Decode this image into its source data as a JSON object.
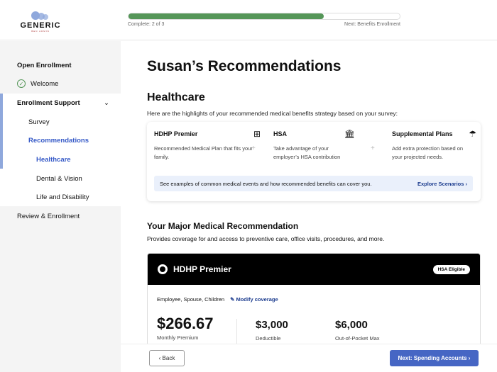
{
  "logo": {
    "name": "GENERIC",
    "tagline": "BEN ADMIN"
  },
  "progress": {
    "label": "Complete: 2 of 3",
    "fraction": 0.72,
    "next": "Next: Benefits Enrollment",
    "color": "#559658"
  },
  "sidebar": {
    "items": [
      {
        "label": "Open Enrollment"
      },
      {
        "label": "Welcome",
        "status": "complete"
      },
      {
        "label": "Enrollment Support",
        "expanded": true
      },
      {
        "label": "Survey"
      },
      {
        "label": "Recommendations",
        "active": true
      },
      {
        "label": "Healthcare",
        "active": true
      },
      {
        "label": "Dental & Vision"
      },
      {
        "label": "Life and Disability"
      },
      {
        "label": "Review & Enrollment"
      }
    ]
  },
  "main": {
    "title": "Susan’s Recommendations",
    "section": "Healthcare",
    "intro": "Here are the highlights of your recommended medical benefits strategy based on your survey:",
    "highlights": [
      {
        "title": "HDHP Premier",
        "desc": "Recommended Medical Plan that fits your family.",
        "icon": "medical-kit-icon"
      },
      {
        "title": "HSA",
        "desc": "Take advantage of your employer’s HSA contribution",
        "icon": "bank-icon"
      },
      {
        "title": "Supplemental Plans",
        "desc": "Add extra protection based on your projected needs.",
        "icon": "umbrella-icon"
      }
    ],
    "banner": {
      "text": "See examples of common medical events and how recommended benefits can cover you.",
      "link": "Explore Scenarios"
    },
    "major_title": "Your Major Medical Recommendation",
    "major_desc": "Provides coverage for and access to preventive care, office visits, procedures, and more.",
    "plan": {
      "name": "HDHP Premier",
      "badge": "HSA Eligible",
      "coverage": "Employee, Spouse, Children",
      "modify": "Modify coverage",
      "amounts": [
        {
          "value": "$266.67",
          "label": "Monthly Premium"
        },
        {
          "value": "$3,000",
          "label": "Deductible"
        },
        {
          "value": "$6,000",
          "label": "Out-of-Pocket Max"
        }
      ]
    }
  },
  "footer": {
    "back": "Back",
    "next": "Next: Spending Accounts"
  }
}
